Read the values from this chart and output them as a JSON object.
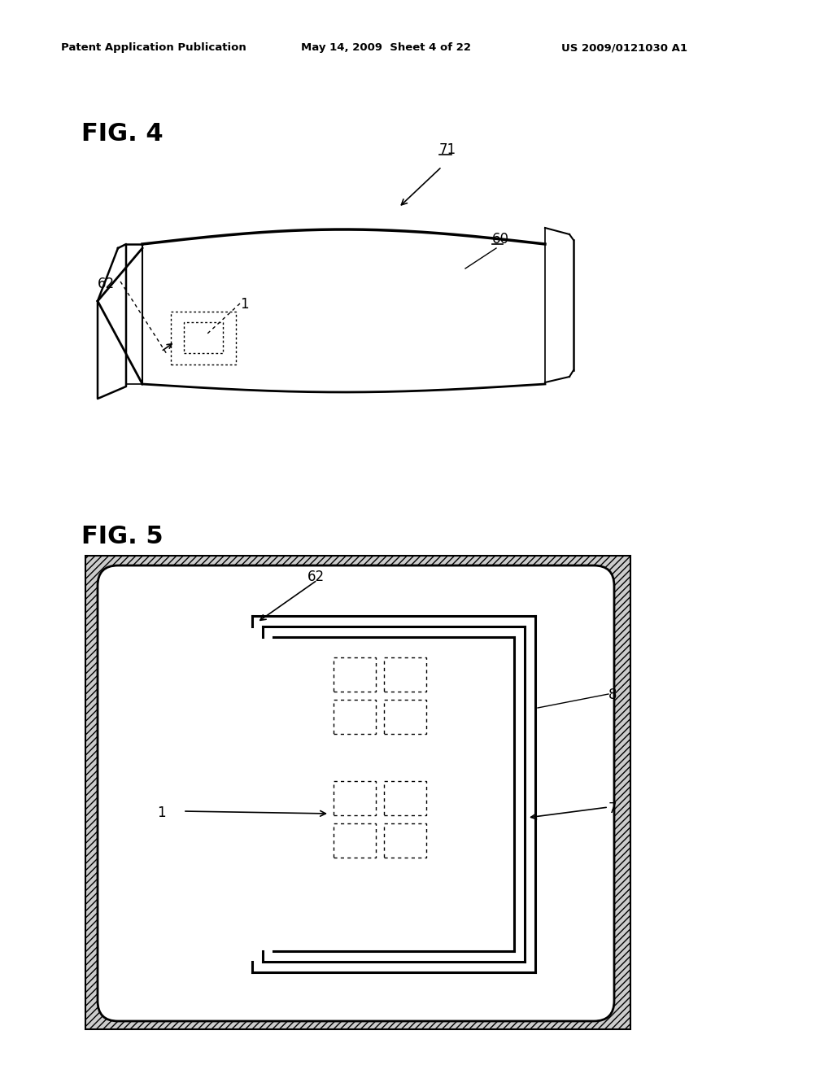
{
  "bg_color": "#ffffff",
  "header_left": "Patent Application Publication",
  "header_center": "May 14, 2009  Sheet 4 of 22",
  "header_right": "US 2009/0121030 A1",
  "fig4_label": "FIG. 4",
  "fig5_label": "FIG. 5",
  "label_71": "71",
  "label_60": "60",
  "label_62_fig4": "62",
  "label_1_fig4": "1",
  "label_62_fig5": "62",
  "label_1_fig5": "1",
  "label_7": "7",
  "label_8": "8"
}
